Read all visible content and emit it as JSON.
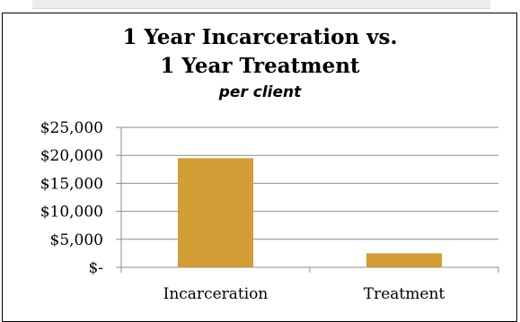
{
  "chart_data": {
    "type": "bar",
    "title_line1": "1 Year Incarceration vs.",
    "title_line2": "1 Year Treatment",
    "subtitle": "per client",
    "categories": [
      "Incarceration",
      "Treatment"
    ],
    "values": [
      19500,
      2500
    ],
    "ylim": [
      0,
      25000
    ],
    "yticks": [
      0,
      5000,
      10000,
      15000,
      20000,
      25000
    ],
    "ytick_labels": [
      "$-",
      "$5,000",
      "$10,000",
      "$15,000",
      "$20,000",
      "$25,000"
    ],
    "grid": true,
    "legend": "none",
    "bar_color": "#D19D34"
  }
}
